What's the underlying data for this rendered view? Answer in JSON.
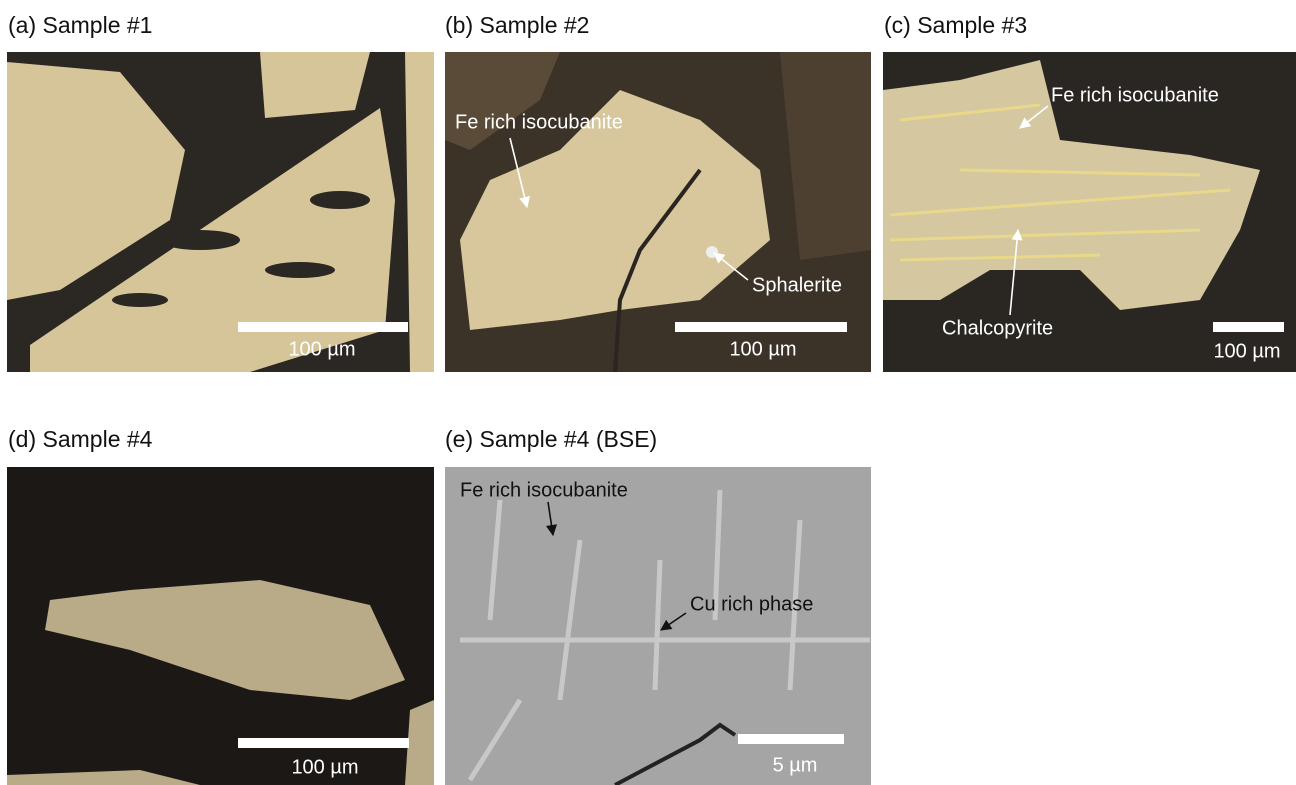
{
  "panels": [
    {
      "title": "(a) Sample #1",
      "scale_bar": "100 µm"
    },
    {
      "title": "(b) Sample #2",
      "annotations": [
        "Fe rich isocubanite",
        "Sphalerite"
      ],
      "scale_bar": "100 µm"
    },
    {
      "title": "(c) Sample #3",
      "annotations": [
        "Fe rich isocubanite",
        "Chalcopyrite"
      ],
      "scale_bar": "100 µm"
    },
    {
      "title": "(d) Sample #4",
      "scale_bar": "100 µm"
    },
    {
      "title": "(e) Sample #4 (BSE)",
      "annotations": [
        "Fe rich isocubanite",
        "Cu rich phase"
      ],
      "scale_bar": "5 µm"
    }
  ]
}
